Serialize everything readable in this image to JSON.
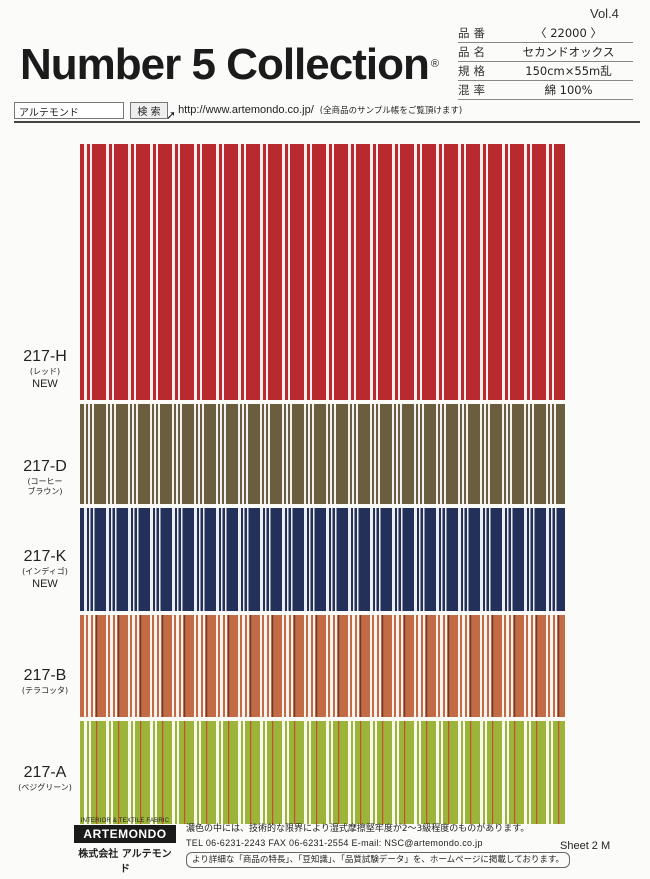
{
  "header": {
    "volume": "Vol.4",
    "brand": "Number 5 Collection",
    "registered_mark": "®"
  },
  "spec": [
    {
      "key": "品番",
      "value": "〈 22000 〉"
    },
    {
      "key": "品名",
      "value": "セカンドオックス"
    },
    {
      "key": "規格",
      "value": "150cm×55m乱"
    },
    {
      "key": "混率",
      "value": "綿 100%"
    }
  ],
  "search": {
    "box_value": "アルテモンド",
    "button_label": "検 索",
    "url": "http://www.artemondo.co.jp/",
    "note": "(全商品のサンプル帳をご覧頂けます)"
  },
  "swatches": [
    {
      "code": "217-H",
      "color_name": "(レッド)",
      "new_badge": "NEW",
      "base": "#b92a2f",
      "stripe": "#ffffff",
      "pattern": "red"
    },
    {
      "code": "217-D",
      "color_name": "(コーヒー\nブラウン)",
      "new_badge": "",
      "base": "#6b5e3e",
      "stripe": "#ffffff",
      "pattern": "brown"
    },
    {
      "code": "217-K",
      "color_name": "(インディゴ)",
      "new_badge": "NEW",
      "base": "#23305a",
      "stripe": "#ffffff",
      "pattern": "navy"
    },
    {
      "code": "217-B",
      "color_name": "(テラコッタ)",
      "new_badge": "",
      "base": "#c36b45",
      "stripe": "#ffffff",
      "pattern": "terracotta"
    },
    {
      "code": "217-A",
      "color_name": "(ペジグリーン)",
      "new_badge": "",
      "base": "#9cb43a",
      "stripe": "#ffffff",
      "pattern": "green"
    }
  ],
  "footer": {
    "tagline": "INTERIOR & TEXTILE FABRIC",
    "logo": "ARTEMONDO",
    "company": "株式会社 アルテモンド",
    "note": "濃色の中には、技術的な限界により湿式摩擦堅牢度が2～3級程度のものがあります。",
    "contact": "TEL 06-6231-2243   FAX 06-6231-2554   E-mail: NSC@artemondo.co.jp",
    "more_info": "より詳細な「商品の特長」、「豆知識」、「品質試験データ」を、ホームページに掲載しております。",
    "sheet": "Sheet 2 M"
  }
}
